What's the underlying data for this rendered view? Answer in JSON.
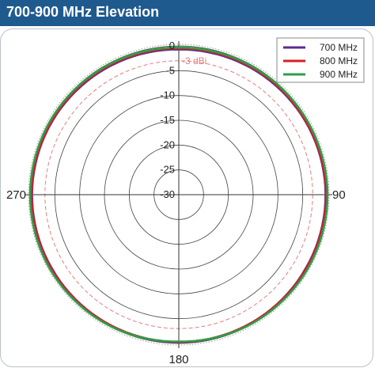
{
  "header": {
    "title": "700-900 MHz Elevation"
  },
  "colors": {
    "header_bg": "#1f5a8f",
    "700": "#5b2d91",
    "800": "#d0202a",
    "900": "#2f9e48",
    "reference_ring": "#e08080",
    "grid": "#555555"
  },
  "chart_data": {
    "type": "polar",
    "title": "700-900 MHz Elevation",
    "radial_unit": "dBi",
    "radial_ticks": [
      0,
      -5,
      -10,
      -15,
      -20,
      -25,
      -30
    ],
    "radial_tick_labels": [
      "0",
      "-5",
      "-10",
      "-15",
      "-20",
      "-25",
      "-30"
    ],
    "rlim": [
      -30,
      0
    ],
    "angle_labels": [
      {
        "angle": 90,
        "label": "90"
      },
      {
        "angle": 180,
        "label": "180"
      },
      {
        "angle": 270,
        "label": "270"
      }
    ],
    "reference_ring": {
      "value": -3,
      "label": "-3 dBi"
    },
    "grid": true,
    "legend_position": "top-right",
    "series": [
      {
        "name": "700 MHz",
        "color": "#5b2d91",
        "angles": [
          0,
          30,
          60,
          90,
          120,
          150,
          180,
          210,
          240,
          270,
          300,
          330
        ],
        "values": [
          -0.7,
          -0.6,
          -0.5,
          -0.4,
          -0.4,
          -0.3,
          -0.2,
          -0.3,
          -0.4,
          -0.4,
          -0.5,
          -0.6
        ]
      },
      {
        "name": "800 MHz",
        "color": "#d0202a",
        "angles": [
          0,
          30,
          60,
          90,
          120,
          150,
          180,
          210,
          240,
          270,
          300,
          330
        ],
        "values": [
          -0.5,
          -0.4,
          -0.4,
          -0.3,
          -0.3,
          -0.3,
          -0.3,
          -0.3,
          -0.3,
          -0.3,
          -0.4,
          -0.4
        ]
      },
      {
        "name": "900 MHz",
        "color": "#2f9e48",
        "angles": [
          0,
          30,
          60,
          90,
          120,
          150,
          180,
          210,
          240,
          270,
          300,
          330
        ],
        "values": [
          -0.3,
          -0.2,
          -0.1,
          0.0,
          0.0,
          -0.1,
          -0.4,
          -0.1,
          0.0,
          0.0,
          -0.1,
          -0.2
        ]
      }
    ]
  }
}
